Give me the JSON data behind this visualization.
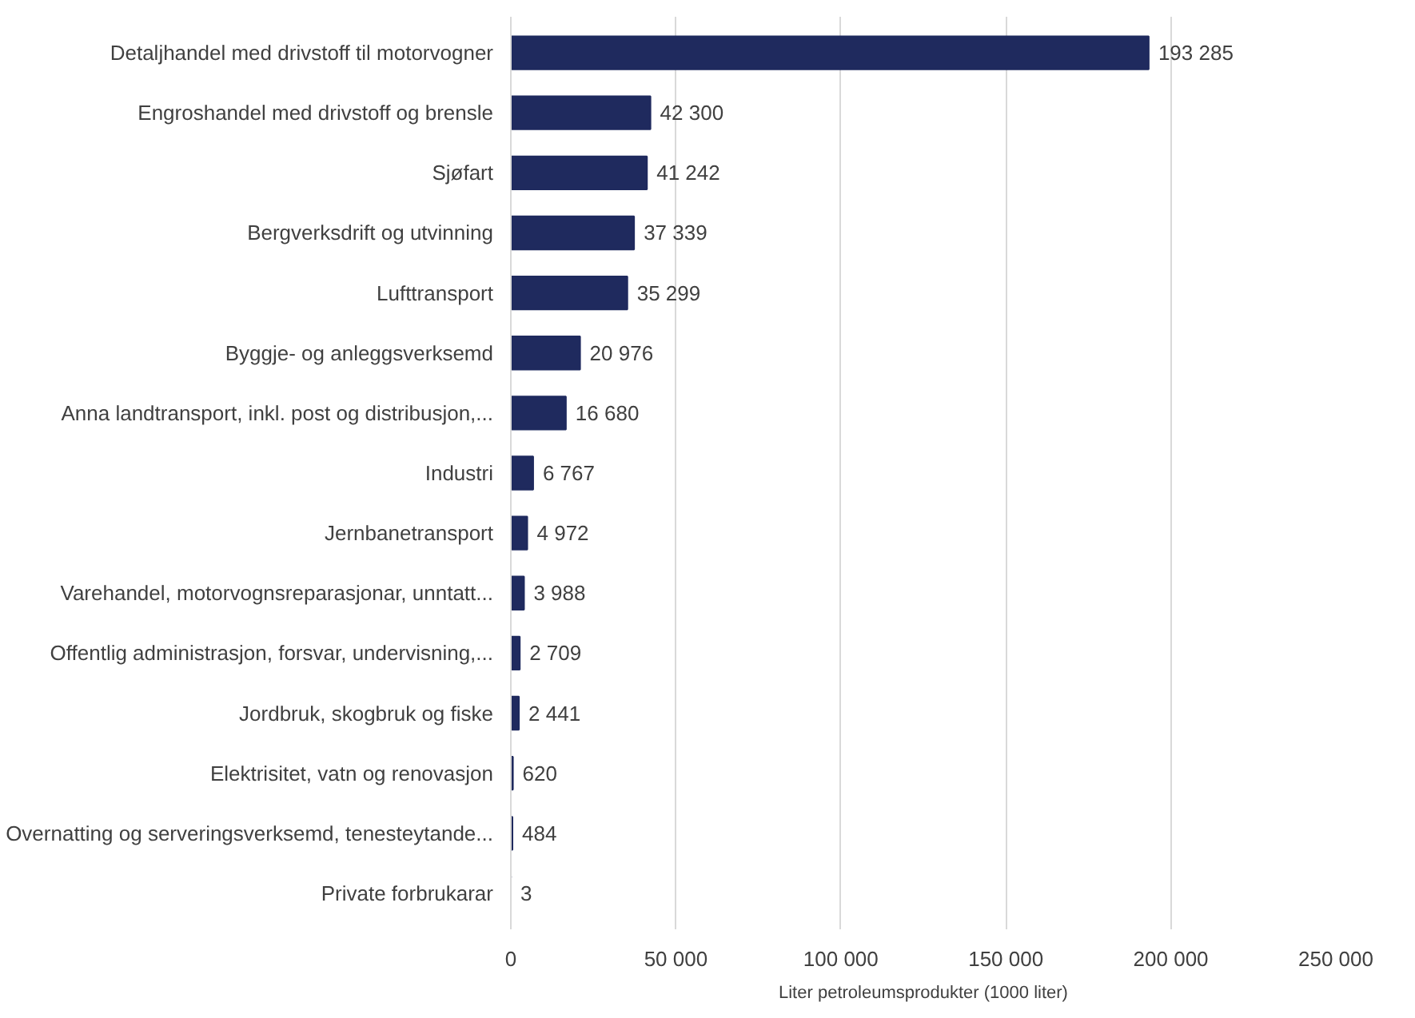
{
  "chart_data": {
    "type": "bar",
    "orientation": "horizontal",
    "xlabel": "Liter petroleumsprodukter (1000 liter)",
    "categories": [
      "Detaljhandel med drivstoff til motorvogner",
      "Engroshandel med drivstoff og brensle",
      "Sjøfart",
      "Bergverksdrift og utvinning",
      "Lufttransport",
      "Byggje- og anleggsverksemd",
      "Anna landtransport, inkl. post og distribusjon,...",
      "Industri",
      "Jernbanetransport",
      "Varehandel, motorvognsreparasjonar, unntatt...",
      "Offentlig administrasjon, forsvar, undervisning,...",
      "Jordbruk, skogbruk og fiske",
      "Elektrisitet, vatn og renovasjon",
      "Overnatting og serveringsverksemd, tenesteytande...",
      "Private forbrukarar"
    ],
    "values": [
      193285,
      42300,
      41242,
      37339,
      35299,
      20976,
      16680,
      6767,
      4972,
      3988,
      2709,
      2441,
      620,
      484,
      3
    ],
    "value_labels": [
      "193 285",
      "42 300",
      "41 242",
      "37 339",
      "35 299",
      "20 976",
      "16 680",
      "6 767",
      "4 972",
      "3 988",
      "2 709",
      "2 441",
      "620",
      "484",
      "3"
    ],
    "color": "#1f2a5e",
    "xlim": [
      0,
      250000
    ],
    "xticks": [
      0,
      {
        "value": 50000,
        "label": "50 000"
      },
      {
        "value": 100000,
        "label": "100 000"
      },
      {
        "value": 150000,
        "label": "150 000"
      },
      {
        "value": 200000,
        "label": "200 000"
      },
      {
        "value": 250000,
        "label": "250 000"
      }
    ],
    "grid": "x"
  }
}
